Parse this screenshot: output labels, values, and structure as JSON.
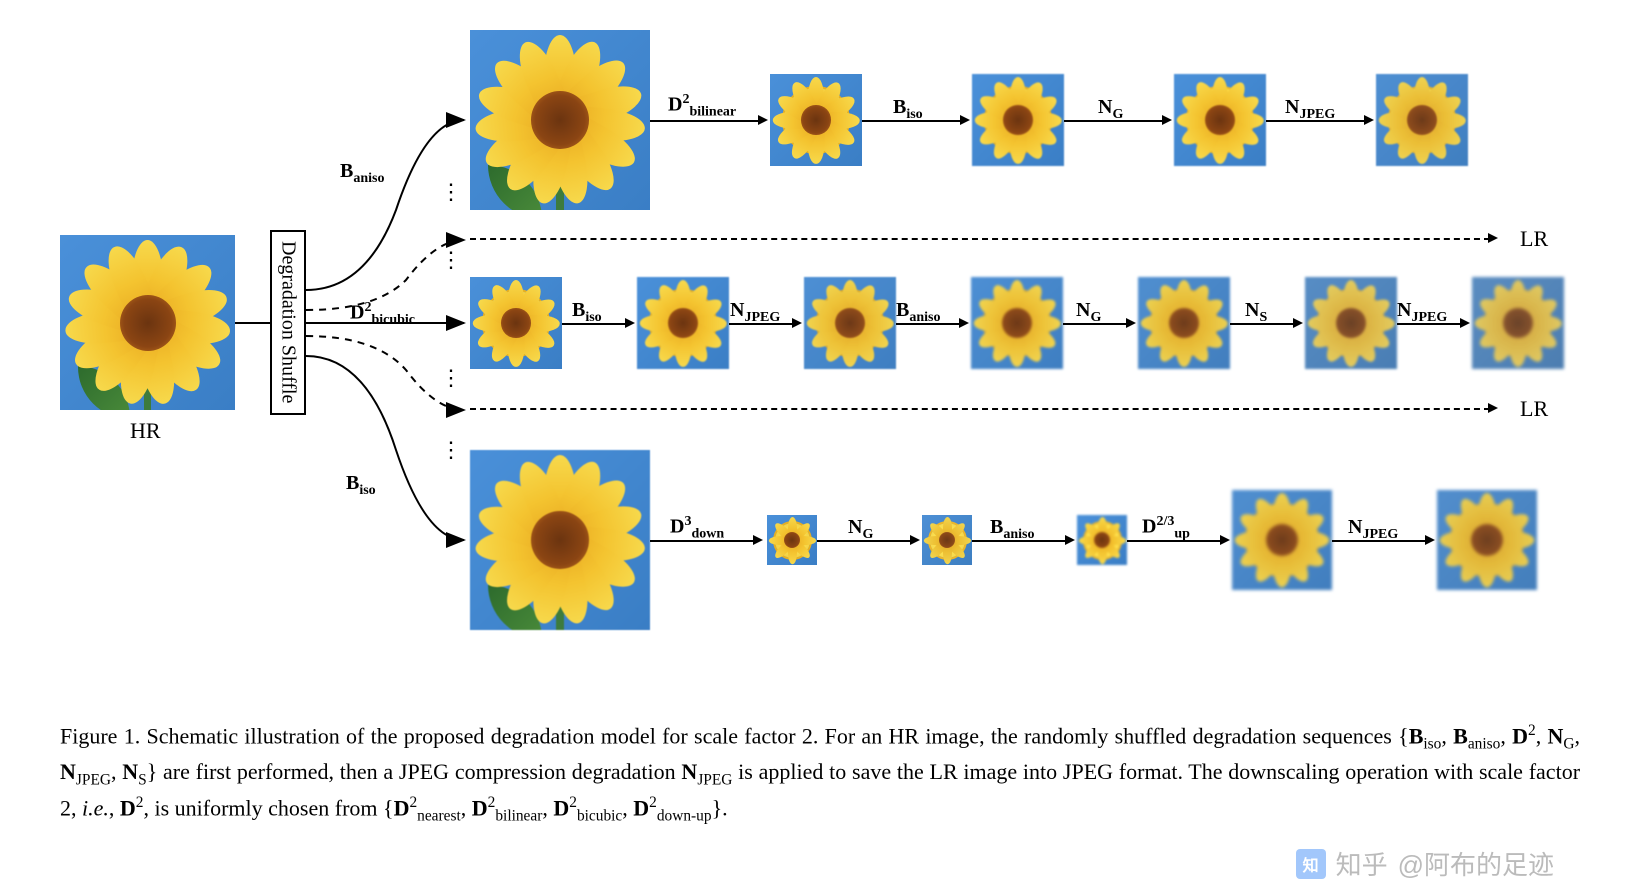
{
  "figure": {
    "hr_label": "HR",
    "lr_label": "LR",
    "shuffle_box": "Degradation Shuffle",
    "branch_labels": {
      "top": "B<sub>aniso</sub>",
      "mid": "D<sup>2</sup><sub>bicubic</sub>",
      "bot": "B<sub>iso</sub>"
    },
    "row1_ops": [
      "D<sup>2</sup><sub>bilinear</sub>",
      "B<sub>iso</sub>",
      "N<sub>G</sub>",
      "N<sub>JPEG</sub>"
    ],
    "row2_ops": [
      "B<sub>iso</sub>",
      "N<sub>JPEG</sub>",
      "B<sub>aniso</sub>",
      "N<sub>G</sub>",
      "N<sub>S</sub>",
      "N<sub>JPEG</sub>"
    ],
    "row3_ops": [
      "D<sup>3</sup><sub>down</sub>",
      "N<sub>G</sub>",
      "B<sub>aniso</sub>",
      "D<sup>2/3</sup><sub>up</sub>",
      "N<sub>JPEG</sub>"
    ],
    "colors": {
      "sky": "#4a90d9",
      "petal": "#f4c430",
      "center": "#8b4513",
      "leaf": "#3d7b3d",
      "arrow": "#000000",
      "text": "#000000",
      "bg": "#ffffff"
    },
    "image_sizes": {
      "hr": 175,
      "large": 180,
      "small": 92,
      "tiny": 58,
      "tinier": 50,
      "med": 100
    }
  },
  "caption": {
    "text_html": "Figure 1. Schematic illustration of the proposed degradation model for scale factor 2. For an HR image, the randomly shuffled degradation sequences {<b>B</b><sub>iso</sub>, <b>B</b><sub>aniso</sub>, <b>D</b><sup>2</sup>, <b>N</b><sub>G</sub>, <b>N</b><sub>JPEG</sub>, <b>N</b><sub>S</sub>} are first performed, then a JPEG compression degradation <b>N</b><sub>JPEG</sub> is applied to save the LR image into JPEG format. The downscaling operation with scale factor 2, <i>i.e.</i>, <b>D</b><sup>2</sup>, is uniformly chosen from {<b>D</b><sup>2</sup><sub>nearest</sub>, <b>D</b><sup>2</sup><sub>bilinear</sub>, <b>D</b><sup>2</sup><sub>bicubic</sub>, <b>D</b><sup>2</sup><sub>down-up</sub>}."
  },
  "watermark": {
    "text": "@阿布的足迹",
    "prefix": "知乎"
  }
}
